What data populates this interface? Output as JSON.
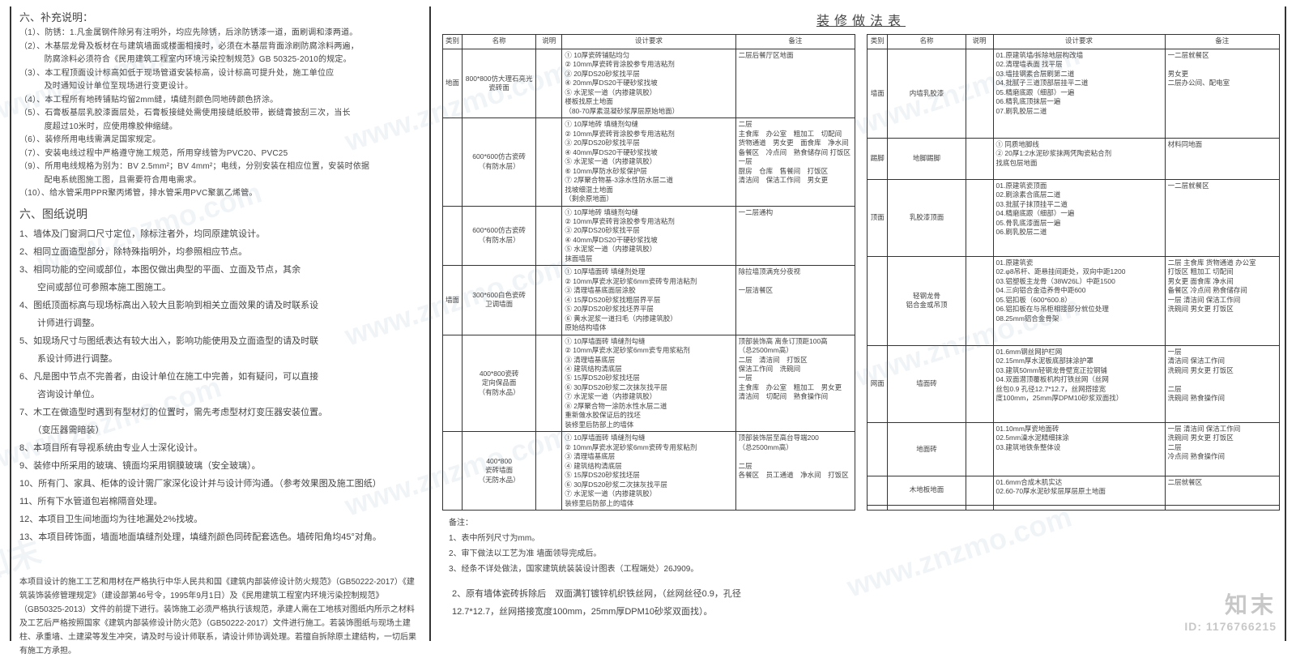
{
  "watermark_text": "www.znzmo.com",
  "watermark_cn": "知末",
  "logo": {
    "big": "知末",
    "id": "ID: 1176766215"
  },
  "left": {
    "sec_hdr": "六、补充说明：",
    "notes": [
      "（1）、防锈：1.凡金属钢件除另有注明外，均应先除锈，后涂防锈漆一道，面刷调和漆两道。",
      "（2）、木基层龙骨及板材在与建筑墙面或楼面相接时，必须在木基层背面涂刷防腐涂料两遍，",
      "　　　防腐涂料必须符合《民用建筑工程室内环境污染控制规范》GB 50325-2010的规定。",
      "（3）、本工程顶面设计标高如低于现场管道安装标高，设计标高可提升处，施工单位应",
      "　　　及时通知设计单位至现场进行变更设计。",
      "（4）、本工程所有地砖铺贴均留2mm缝，填缝剂颜色同地砖颜色挤涂。",
      "（5）、石膏板基层乳胶漆面层处，石膏板接缝处需使用接缝纸胶带，嵌缝膏披刮三次，当长",
      "　　　度超过10米时，应使用橡胶伸缩缝。",
      "（6）、装修所用电线需满足国家规定。",
      "（7）、安装电线过程中严格遵守施工规范，所用穿线管为PVC20、PVC25",
      "（9）、所用电线规格为别为：BV 2.5mm²；BV 4mm²；电线，分别安装在相应位置，安装时依据",
      "　　　配电系统图施工图，且需要符合用电需求。",
      "（10）、给水管采用PPR聚丙烯管，排水管采用PVC聚氯乙烯管。"
    ],
    "fig_title": "六、图纸说明",
    "items": [
      "1、墙体及门窗洞口尺寸定位，除标注者外，均同原建筑设计。",
      "2、相同立面造型部分，除特殊指明外，均参照相应节点。",
      "3、相同功能的空间或部位，本图仅做出典型的平面、立面及节点，其余",
      "　　空间或部位可参照本施工图施工。",
      "4、图纸顶面标高与现场标高出入较大且影响到相关立面效果的请及时联系设",
      "　　计师进行调整。",
      "5、如现场尺寸与图纸表达有较大出入，影响功能使用及立面造型的请及时联",
      "　　系设计师进行调整。",
      "6、凡是图中节点不完善者，由设计单位在施工中完善，如有疑问，可以直接",
      "　　咨询设计单位。",
      "7、木工在做造型时遇到有型材灯的位置时，需先考虑型材灯变压器安装位置。",
      "　　（变压器需暗装）",
      "8、本项目所有导视系统由专业人士深化设计。",
      "9、装修中所采用的玻璃、镜面均采用钢膜玻璃（安全玻璃）。",
      "10、所有门、家具、柜体的设计需厂家深化设计并与设计师沟通。（参考效果图及施工图纸）",
      "11、所有下水管道包岩棉隔音处理。",
      "12、本项目卫生间地面均为往地漏处2%找坡。",
      "13、本项目砖饰面，墙面地面填缝剂处理，填缝剂颜色同砖配套选色。墙砖阳角均45°对角。"
    ],
    "footer": "本项目设计的施工工艺和用材在严格执行中华人民共和国《建筑内部装修设计防火规范》（GB50222-2017）《建筑装饰装修管理规定》（建设部第46号令，1995年9月1日）及《民用建筑工程室内环境污染控制规范》（GB50325-2013）文件的前提下进行。装饰施工必须严格执行该规范，承建人需在工地核对图纸内所示之材料及工艺后严格按照国家《建筑内部装修设计防火范》（GB50222-2017）文件进行施工。若装饰图纸与现场土建柱、承重墙、土建梁等发生冲突，请及时与设计师联系，请设计师协调处理。若擅自拆除原土建结构，一切后果有施工方承担。"
  },
  "right": {
    "title": "装修做法表",
    "headers": [
      "类别",
      "名称",
      "说明",
      "设计要求",
      "备注"
    ],
    "tbl1": [
      {
        "cat": "地面",
        "name": "800*800仿大理石亮光瓷砖面",
        "req": "① 10厚瓷砖铺贴均匀\n② 10mm厚瓷砖背涂胶参专用洁粘剂\n③ 20厚DS20砂浆找平层\n④ 20mm厚DS20干硬砂浆找坡\n⑤ 水泥浆一道（内掺建筑胶）\n楼板找原土地面\n（80-70厚素混凝砂浆厚层原始地面）",
        "remark": "二层后餐厅区地面"
      },
      {
        "cat": "",
        "name": "600*600仿古瓷砖\n（有防水层）",
        "req": "① 10厚地砖 填缝剂勾缝\n② 10mm厚瓷砖背涂胶参专用洁粘剂\n③ 20厚DS20砂浆找平层\n④ 40mm厚DS20干硬砂浆找坡\n⑤ 水泥浆一道（内掺建筑胶）\n⑥ 10mm厚防水砂浆保护层\n⑦ 2厚聚合物基-3涂水性防水层二道\n找坡细混土地面\n（剩余原地面）",
        "remark": "二层\n主食库　办公室　粗加工　切配间\n货物通道　男女更　面食库　净水间\n备餐区　冷点间　熟食储存间 打饭区\n一层\n厨房　仓库　售餐间　打饭区\n清洁间　保洁工作间　男女更"
      },
      {
        "cat": "",
        "name": "600*600仿古瓷砖\n（有防水层）",
        "req": "① 10厚地砖 填缝剂勾缝\n② 10mm厚瓷砖背涂胶参专用洁粘剂\n③ 20厚DS20砂浆找平层\n④ 40mm厚DS20干硬砂浆找坡\n⑤ 水泥浆一道（内掺建筑胶）\n抹面墙层",
        "remark": "一二层通构"
      },
      {
        "cat": "墙面",
        "name": "300*600白色瓷砖\n卫调墙面",
        "req": "① 10厚墙面砖 填缝剂处理\n② 10mm厚瓷水泥砂浆6mm瓷砖专用洁粘剂\n③ 清理墙基底面层涂胶\n④ 15厚DS20砂浆找粗层界平层\n⑤ 20厚DS20砂浆找坯界平层\n⑥ 黄水泥浆一道扫毛（内掺建筑胶）\n原始结构墙体",
        "remark": "除拉墙顶满充分夜视\n\n一层洁餐区"
      },
      {
        "cat": "",
        "name": "400*800瓷砖\n定向保品面\n（有防水品）",
        "req": "① 10厚墙面砖 填缝剂勾缝\n② 10mm厚瓷水泥砂浆6mm瓷专用浆粘剂\n③ 清理墙基底层\n④ 建筑结构清底层\n⑤ 15厚DS20砂浆找坯层\n⑥ 30厚DS20砂浆二次抹灰找平层\n⑦ 水泥浆一道（内掺建筑胶）\n⑧ 2厚聚合物一涂防水性水层二道\n重新做水胶保证后的找坯\n装修里后防部上的墙体",
        "remark": "顶部装饰高 离条订顶距100高\n（总2500mm高）\n二层　清洁间　打饭区\n保洁工作间　洗碗间\n一层\n主食库　办公室　粗加工　男女更\n清洁间　切配间　熟食操作间"
      },
      {
        "cat": "",
        "name": "400*800\n瓷砖墙面\n（无防水品）",
        "req": "① 10厚墙面砖 填缝剂勾缝\n② 10mm厚瓷水泥砂浆6mm瓷砖专用浆粘剂\n③ 清理墙基底层\n④ 建筑结构清底层\n⑤ 15厚DS20砂浆找坯层\n⑥ 30厚DS20砂浆二次抹灰找平层\n⑦ 水泥浆一道（内掺建筑胶）\n装修里后防部上的墙体",
        "remark": "顶部装饰层至高台导端200\n（总2500mm高）\n\n二层\n各餐区　员工通道　净水间　打饭区"
      }
    ],
    "tbl2": [
      {
        "cat": "墙面",
        "name": "内墙乳胶漆",
        "req": "01.原建筑墙/拆除地层构改墙\n02.清理墙表面 找平层\n03.墙挂钢素合层刷第二道\n04.批腻子三道顶部层挂平二道\n05.精磨底跟（细部）一遍\n06.精乳底顶抹层一遍\n07.刷乳胶层二道",
        "remark": "一二层就餐区\n\n男女更\n二层办公间、配电室"
      },
      {
        "cat": "踢脚",
        "name": "地脚踢脚",
        "req": "① 同质地脚线\n② 20厚1:2水泥砂浆抹两凭陶瓷粘合剂\n找底包层地面",
        "remark": "材料同地面"
      },
      {
        "cat": "顶面",
        "name": "乳胶漆顶面",
        "req": "01.原建筑瓷顶面\n02.刷涂素合底层二道\n03.批腻子抹顶挂平二道\n04.精磨底跟（细部）一遍\n05.骨乳底漆面层一遍\n06.刷乳胶层二道",
        "remark": "一二层就餐区"
      },
      {
        "cat": "",
        "name": "轻钢龙骨\n铝合金或吊顶",
        "req": "01.原建筑瓷\n02.φ8吊杆、距悬挂间距处，双向中距1200\n03.铝塑板主龙骨（38W26L）中距1500\n04.三向铝合金造养骨中距600\n05.铝扣板（600*600.8）\n06.铝扣板在与吊柜相接部分就位处理\n08.25mm铝合金骨架",
        "remark": "二层 主食库 货物通道 办公室\n打饭区 粗加工 切配间\n男女更 面食库 净水间\n备餐区 冷点间 熟食储存间\n一层 清洁间 保洁工作间\n洗碗间 男女更 打饭区"
      },
      {
        "cat": "网面",
        "name": "墙面砖",
        "req": "01.6mm钢丝网护栏网\n02.15mm厚水泥板底部抹涂护罩\n03.建筑50mm轻钢龙骨壁宽正拉钢铺\n04.双面潜顶覆板机构打铁丝网（丝网\n丝包0.9 孔径12.7*12.7，丝网搭接宽\n度100mm，25mm厚DPM10砂浆双面找）",
        "remark": "一层\n清洁间 保洁工作间\n洗碗间 男女更 打饭区\n\n二层\n洗碗间 熟食操作间"
      },
      {
        "cat": "",
        "name": "地面砖",
        "req": "01.10mm厚瓷地面砖\n02.5mm澡水泥精细抹涂\n03.建筑地铁条整体设",
        "remark": "一层 清洁间 保洁工作间\n洗碗间 男女更 打饭区\n二层\n冷点间 熟食操作间"
      },
      {
        "cat": "",
        "name": "木地板地面",
        "req": "01.6mm合成木肌实达\n02.60-70厚水泥砂浆层厚层原土地面",
        "remark": "二层就餐区"
      },
      {
        "cat": "",
        "name": "",
        "req": "",
        "remark": ""
      }
    ],
    "tfooter": [
      "备注：",
      "1、表中所列尺寸为mm。",
      "2、审下做法以工艺为准 墙面领导完成后。",
      "3、经条不详处做法，国家建筑统装装设计图表（工程端处）26J909。"
    ],
    "rfooter": "2、原有墙体瓷砖拆除后　双面满钉镀锌机织铁丝网，（丝网丝径0.9，孔径\n12.7*12.7，丝网搭接宽度100mm，25mm厚DPM10砂浆双面找）。"
  }
}
